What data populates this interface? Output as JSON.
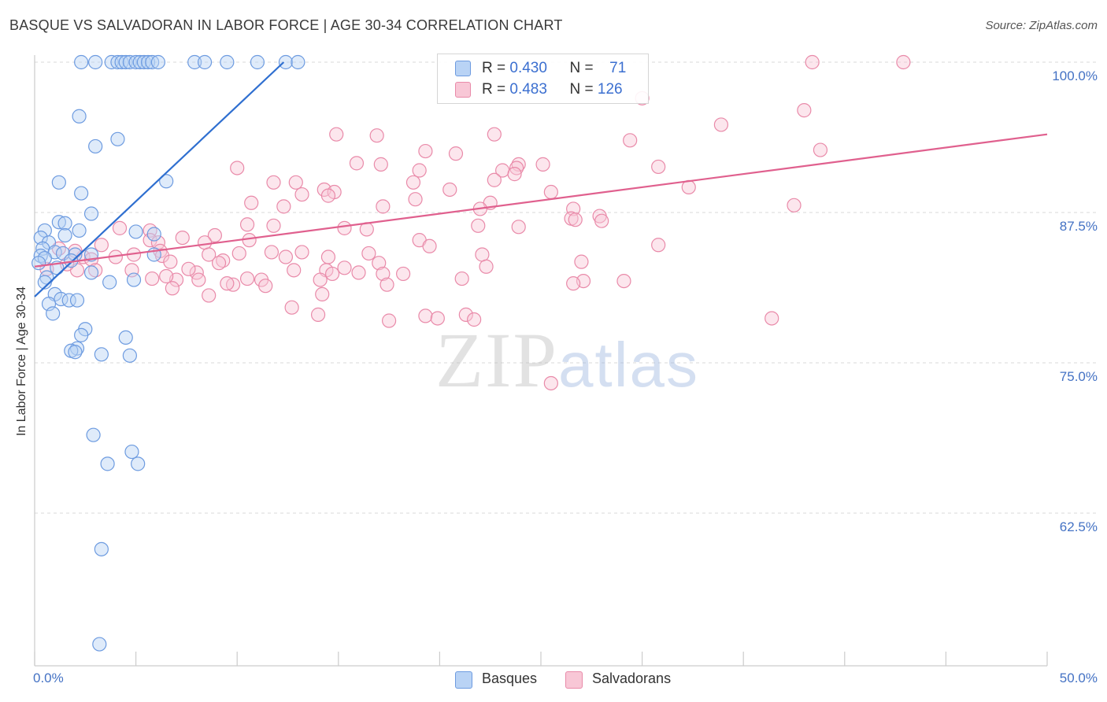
{
  "title": "BASQUE VS SALVADORAN IN LABOR FORCE | AGE 30-34 CORRELATION CHART",
  "source": "Source: ZipAtlas.com",
  "watermark": {
    "zip": "ZIP",
    "atlas": "atlas"
  },
  "legend": {
    "r_label": "R =",
    "n_label": "N =",
    "basque": {
      "r": "0.430",
      "n": "71"
    },
    "salvadoran": {
      "r": "0.483",
      "n": "126"
    }
  },
  "bottom_legend": {
    "basque": "Basques",
    "salvadoran": "Salvadorans"
  },
  "colors": {
    "basque_fill": "#b9d3f5",
    "basque_stroke": "#6d9be0",
    "basque_line": "#2f6fd0",
    "salv_fill": "#f8c7d6",
    "salv_stroke": "#e98aa9",
    "salv_line": "#e0608e",
    "grid": "#d8d8d8",
    "axis_text": "#4472c4"
  },
  "chart_data": {
    "type": "scatter",
    "title": "BASQUE VS SALVADORAN IN LABOR FORCE | AGE 30-34 CORRELATION CHART",
    "xlabel": "",
    "ylabel": "In Labor Force | Age 30-34",
    "xlim": [
      0,
      50
    ],
    "ylim": [
      52.5,
      101.5
    ],
    "x_tick_labels": [
      "0.0%",
      "50.0%"
    ],
    "y_ticks": [
      100.0,
      87.5,
      75.0,
      62.5
    ],
    "y_tick_labels": [
      "100.0%",
      "87.5%",
      "75.0%",
      "62.5%"
    ],
    "grid": true,
    "series": [
      {
        "name": "Basques",
        "r": 0.43,
        "n": 71,
        "trend": {
          "x": [
            0.0,
            12.3
          ],
          "y": [
            80.5,
            100.0
          ]
        },
        "points": [
          [
            2.3,
            100.0
          ],
          [
            3.0,
            100.0
          ],
          [
            3.8,
            100.0
          ],
          [
            4.1,
            100.0
          ],
          [
            4.3,
            100.0
          ],
          [
            4.5,
            100.0
          ],
          [
            4.7,
            100.0
          ],
          [
            5.0,
            100.0
          ],
          [
            5.2,
            100.0
          ],
          [
            5.4,
            100.0
          ],
          [
            5.6,
            100.0
          ],
          [
            5.8,
            100.0
          ],
          [
            6.1,
            100.0
          ],
          [
            7.9,
            100.0
          ],
          [
            8.4,
            100.0
          ],
          [
            9.5,
            100.0
          ],
          [
            11.0,
            100.0
          ],
          [
            12.4,
            100.0
          ],
          [
            13.0,
            100.0
          ],
          [
            2.2,
            95.5
          ],
          [
            3.0,
            93.0
          ],
          [
            4.1,
            93.6
          ],
          [
            1.2,
            90.0
          ],
          [
            6.5,
            90.1
          ],
          [
            2.3,
            89.1
          ],
          [
            2.8,
            87.4
          ],
          [
            1.2,
            86.7
          ],
          [
            1.5,
            86.6
          ],
          [
            0.5,
            86.0
          ],
          [
            2.2,
            86.0
          ],
          [
            5.0,
            85.9
          ],
          [
            5.9,
            85.7
          ],
          [
            0.3,
            85.4
          ],
          [
            0.7,
            85.0
          ],
          [
            1.5,
            85.6
          ],
          [
            0.4,
            84.5
          ],
          [
            1.0,
            84.2
          ],
          [
            1.4,
            84.1
          ],
          [
            2.0,
            84.0
          ],
          [
            2.8,
            84.0
          ],
          [
            0.3,
            83.9
          ],
          [
            0.5,
            83.7
          ],
          [
            1.8,
            83.5
          ],
          [
            0.2,
            83.3
          ],
          [
            1.1,
            82.9
          ],
          [
            2.8,
            82.5
          ],
          [
            0.6,
            82.1
          ],
          [
            4.9,
            81.9
          ],
          [
            0.5,
            81.7
          ],
          [
            3.7,
            81.7
          ],
          [
            1.0,
            80.7
          ],
          [
            1.3,
            80.3
          ],
          [
            1.7,
            80.2
          ],
          [
            2.1,
            80.2
          ],
          [
            0.7,
            79.9
          ],
          [
            0.9,
            79.1
          ],
          [
            2.5,
            77.8
          ],
          [
            2.3,
            77.3
          ],
          [
            4.5,
            77.1
          ],
          [
            2.1,
            76.2
          ],
          [
            1.8,
            76.0
          ],
          [
            2.0,
            75.9
          ],
          [
            3.3,
            75.7
          ],
          [
            4.7,
            75.6
          ],
          [
            2.9,
            69.0
          ],
          [
            4.8,
            67.6
          ],
          [
            3.6,
            66.6
          ],
          [
            5.1,
            66.6
          ],
          [
            3.3,
            59.5
          ],
          [
            3.2,
            51.6
          ],
          [
            5.9,
            84.0
          ]
        ]
      },
      {
        "name": "Salvadorans",
        "r": 0.483,
        "n": 126,
        "trend": {
          "x": [
            0.0,
            50.0
          ],
          "y": [
            83.0,
            94.0
          ]
        },
        "points": [
          [
            38.4,
            100.0
          ],
          [
            42.9,
            100.0
          ],
          [
            30.0,
            97.0
          ],
          [
            38.0,
            96.0
          ],
          [
            33.9,
            94.8
          ],
          [
            14.9,
            94.0
          ],
          [
            16.9,
            93.9
          ],
          [
            22.7,
            94.0
          ],
          [
            29.4,
            93.5
          ],
          [
            38.8,
            92.7
          ],
          [
            19.3,
            92.6
          ],
          [
            20.8,
            92.4
          ],
          [
            15.9,
            91.6
          ],
          [
            17.1,
            91.5
          ],
          [
            25.1,
            91.5
          ],
          [
            23.9,
            91.5
          ],
          [
            30.8,
            91.3
          ],
          [
            10.0,
            91.2
          ],
          [
            23.1,
            91.0
          ],
          [
            19.0,
            91.0
          ],
          [
            23.8,
            91.2
          ],
          [
            23.7,
            90.7
          ],
          [
            22.7,
            90.2
          ],
          [
            11.8,
            90.0
          ],
          [
            12.9,
            90.0
          ],
          [
            18.7,
            90.0
          ],
          [
            32.3,
            89.6
          ],
          [
            20.5,
            89.4
          ],
          [
            14.3,
            89.4
          ],
          [
            14.8,
            89.2
          ],
          [
            25.5,
            89.2
          ],
          [
            13.2,
            89.0
          ],
          [
            14.5,
            88.9
          ],
          [
            18.8,
            88.6
          ],
          [
            10.7,
            88.3
          ],
          [
            22.5,
            88.3
          ],
          [
            17.2,
            88.0
          ],
          [
            12.3,
            88.0
          ],
          [
            37.5,
            88.1
          ],
          [
            26.6,
            87.8
          ],
          [
            22.0,
            87.8
          ],
          [
            27.9,
            87.2
          ],
          [
            26.5,
            87.0
          ],
          [
            26.7,
            86.9
          ],
          [
            28.0,
            86.8
          ],
          [
            10.5,
            86.5
          ],
          [
            11.8,
            86.4
          ],
          [
            21.9,
            86.4
          ],
          [
            23.9,
            86.3
          ],
          [
            15.3,
            86.2
          ],
          [
            4.2,
            86.2
          ],
          [
            16.4,
            86.1
          ],
          [
            5.7,
            86.0
          ],
          [
            8.9,
            85.6
          ],
          [
            7.3,
            85.4
          ],
          [
            10.6,
            85.2
          ],
          [
            19.0,
            85.2
          ],
          [
            5.7,
            85.2
          ],
          [
            6.1,
            85.0
          ],
          [
            8.4,
            85.0
          ],
          [
            19.5,
            84.7
          ],
          [
            30.8,
            84.8
          ],
          [
            6.2,
            84.3
          ],
          [
            10.1,
            84.1
          ],
          [
            11.7,
            84.2
          ],
          [
            13.2,
            84.2
          ],
          [
            16.5,
            84.1
          ],
          [
            8.6,
            84.0
          ],
          [
            22.1,
            84.0
          ],
          [
            6.3,
            83.9
          ],
          [
            4.0,
            83.8
          ],
          [
            2.4,
            83.8
          ],
          [
            12.4,
            83.8
          ],
          [
            14.5,
            83.8
          ],
          [
            2.8,
            83.6
          ],
          [
            9.3,
            83.5
          ],
          [
            6.7,
            83.4
          ],
          [
            9.1,
            83.3
          ],
          [
            27.0,
            83.4
          ],
          [
            17.0,
            83.3
          ],
          [
            22.3,
            83.0
          ],
          [
            15.3,
            82.9
          ],
          [
            2.1,
            82.7
          ],
          [
            3.0,
            82.7
          ],
          [
            4.8,
            82.7
          ],
          [
            8.0,
            82.5
          ],
          [
            12.8,
            82.7
          ],
          [
            14.4,
            82.7
          ],
          [
            16.0,
            82.5
          ],
          [
            14.7,
            82.4
          ],
          [
            17.2,
            82.4
          ],
          [
            10.5,
            82.0
          ],
          [
            5.8,
            82.0
          ],
          [
            7.0,
            81.9
          ],
          [
            8.1,
            81.9
          ],
          [
            11.2,
            81.9
          ],
          [
            14.1,
            81.9
          ],
          [
            21.1,
            82.0
          ],
          [
            27.1,
            81.8
          ],
          [
            9.8,
            81.5
          ],
          [
            6.8,
            81.2
          ],
          [
            11.4,
            81.4
          ],
          [
            26.6,
            81.6
          ],
          [
            17.4,
            81.5
          ],
          [
            8.6,
            80.6
          ],
          [
            14.2,
            80.7
          ],
          [
            12.7,
            79.6
          ],
          [
            14.0,
            79.0
          ],
          [
            21.3,
            79.0
          ],
          [
            19.3,
            78.9
          ],
          [
            19.9,
            78.7
          ],
          [
            21.7,
            78.6
          ],
          [
            17.5,
            78.5
          ],
          [
            36.4,
            78.7
          ],
          [
            25.5,
            73.3
          ],
          [
            1.2,
            84.5
          ],
          [
            2.0,
            84.3
          ],
          [
            3.3,
            84.8
          ],
          [
            4.9,
            84.0
          ],
          [
            1.6,
            83.2
          ],
          [
            0.6,
            82.8
          ],
          [
            7.6,
            82.8
          ],
          [
            18.2,
            82.4
          ],
          [
            6.5,
            82.2
          ],
          [
            9.5,
            81.6
          ],
          [
            29.1,
            81.8
          ]
        ]
      }
    ]
  }
}
